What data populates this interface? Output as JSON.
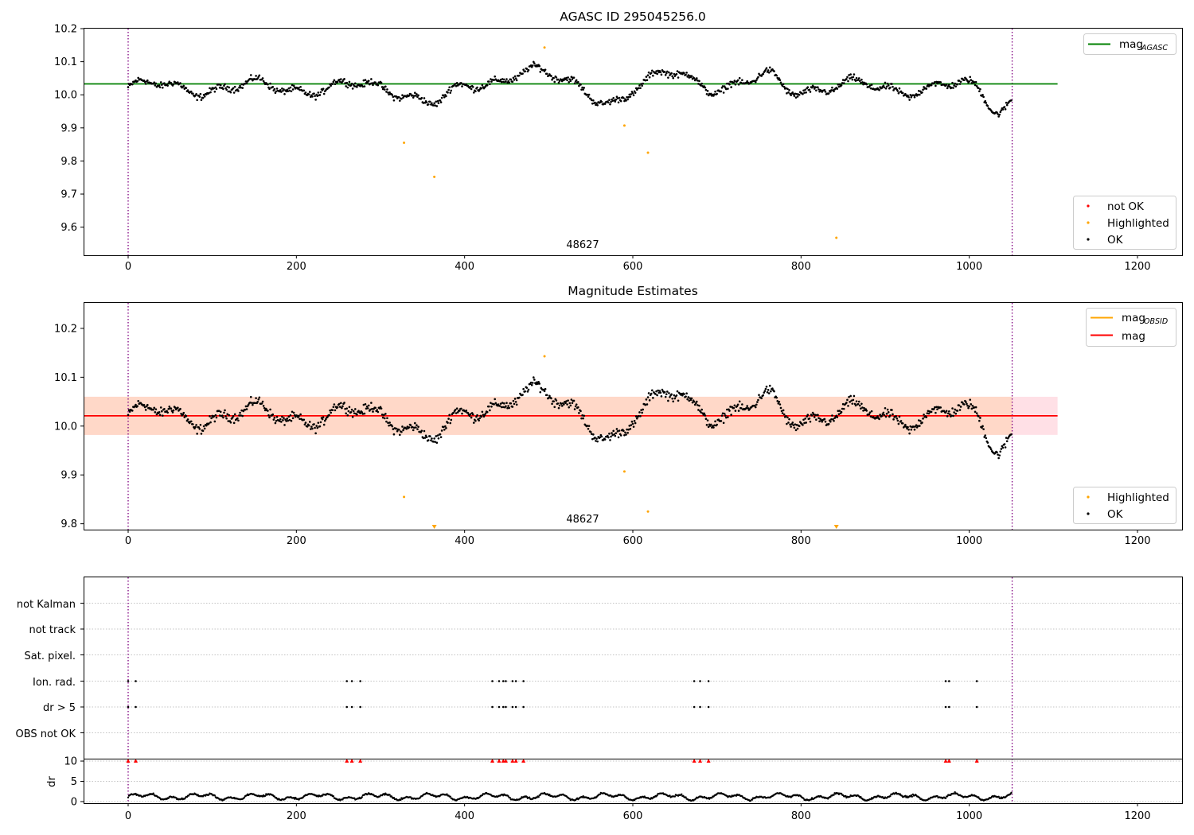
{
  "figure": {
    "title_top": "AGASC ID 295045256.0",
    "title_middle": "Magnitude Estimates",
    "obsid_label": "48627"
  },
  "colors": {
    "ok": "#000000",
    "highlighted": "#ffa500",
    "not_ok": "#ff0000",
    "mag_agasc": "#008000",
    "mag_obsid": "#ffa500",
    "mag": "#ff0000",
    "band_inner": "#ffd8c8",
    "band_outer": "#ffe0e6",
    "obs_boundary": "#800080",
    "grid": "#b0b0b0"
  },
  "chart_data": [
    {
      "type": "scatter",
      "title": "AGASC ID 295045256.0",
      "xlim": [
        -53,
        1253
      ],
      "ylim": [
        9.515,
        10.2
      ],
      "xticks": [
        0,
        200,
        400,
        600,
        800,
        1000,
        1200
      ],
      "yticks": [
        9.6,
        9.7,
        9.8,
        9.9,
        10.0,
        10.1,
        10.2
      ],
      "legend": [
        {
          "name": "mag",
          "subscript": "AGASC",
          "kind": "line",
          "position": "top-right"
        },
        {
          "name": "not OK",
          "kind": "marker",
          "position": "bottom-right"
        },
        {
          "name": "Highlighted",
          "kind": "marker",
          "position": "bottom-right"
        },
        {
          "name": "OK",
          "kind": "marker",
          "position": "bottom-right"
        }
      ],
      "reference_lines": [
        {
          "name": "mag_AGASC",
          "y": 10.033,
          "x": [
            -53,
            1105
          ]
        }
      ],
      "obs_boundaries": [
        0,
        1051
      ],
      "obsid_annotation": {
        "text": "48627",
        "x": 525
      },
      "ok_series": {
        "n": 1051,
        "description": "magnitude samples per index"
      },
      "highlighted": [
        {
          "x": 328,
          "y": 9.855
        },
        {
          "x": 364,
          "y": 9.752
        },
        {
          "x": 495,
          "y": 10.143
        },
        {
          "x": 590,
          "y": 9.907
        },
        {
          "x": 618,
          "y": 9.825
        },
        {
          "x": 842,
          "y": 9.568
        }
      ]
    },
    {
      "type": "scatter",
      "title": "Magnitude Estimates",
      "xlim": [
        -53,
        1253
      ],
      "ylim": [
        9.788,
        10.252
      ],
      "xticks": [
        0,
        200,
        400,
        600,
        800,
        1000,
        1200
      ],
      "yticks": [
        9.8,
        9.9,
        10.0,
        10.1,
        10.2
      ],
      "legend": [
        {
          "name": "mag",
          "subscript": "OBSID",
          "kind": "line",
          "position": "top-right"
        },
        {
          "name": "mag",
          "kind": "line",
          "position": "top-right"
        },
        {
          "name": "Highlighted",
          "kind": "marker",
          "position": "bottom-right"
        },
        {
          "name": "OK",
          "kind": "marker",
          "position": "bottom-right"
        }
      ],
      "reference_lines": [
        {
          "name": "mag",
          "y": 10.021,
          "x": [
            -53,
            1105
          ]
        }
      ],
      "bands": [
        {
          "y": [
            9.982,
            10.06
          ],
          "x": [
            -53,
            1105
          ]
        }
      ],
      "obs_boundaries": [
        0,
        1051
      ],
      "obsid_annotation": {
        "text": "48627",
        "x": 525
      },
      "highlighted": [
        {
          "x": 328,
          "y": 9.855
        },
        {
          "x": 495,
          "y": 10.143
        },
        {
          "x": 590,
          "y": 9.907
        },
        {
          "x": 618,
          "y": 9.825
        },
        {
          "x": 364,
          "y": 9.79,
          "clipped": true
        },
        {
          "x": 842,
          "y": 9.79,
          "clipped": true
        }
      ]
    },
    {
      "type": "scatter",
      "title": "",
      "xlim": [
        -53,
        1253
      ],
      "xticks": [
        0,
        200,
        400,
        600,
        800,
        1000,
        1200
      ],
      "flag_rows": [
        "not Kalman",
        "not track",
        "Sat. pixel.",
        "Ion. rad.",
        "dr > 5",
        "OBS not OK"
      ],
      "flag_events": {
        "Ion. rad.": [
          0,
          9,
          260,
          266,
          276,
          433,
          441,
          446,
          449,
          457,
          461,
          470,
          673,
          680,
          690,
          972,
          976,
          1009
        ],
        "dr > 5": [
          0,
          9,
          260,
          266,
          276,
          433,
          441,
          446,
          449,
          457,
          461,
          470,
          673,
          680,
          690,
          972,
          976,
          1009
        ]
      },
      "dr_panel": {
        "ylabel": "dr",
        "ylim": [
          -0.4,
          10.4
        ],
        "yticks": [
          0,
          5,
          10
        ],
        "clipped_markers_at": 10,
        "clipped_x": [
          0,
          9,
          260,
          266,
          276,
          433,
          441,
          446,
          449,
          457,
          461,
          470,
          673,
          680,
          690,
          972,
          976,
          1009
        ]
      },
      "obs_boundaries": [
        0,
        1051
      ]
    }
  ]
}
